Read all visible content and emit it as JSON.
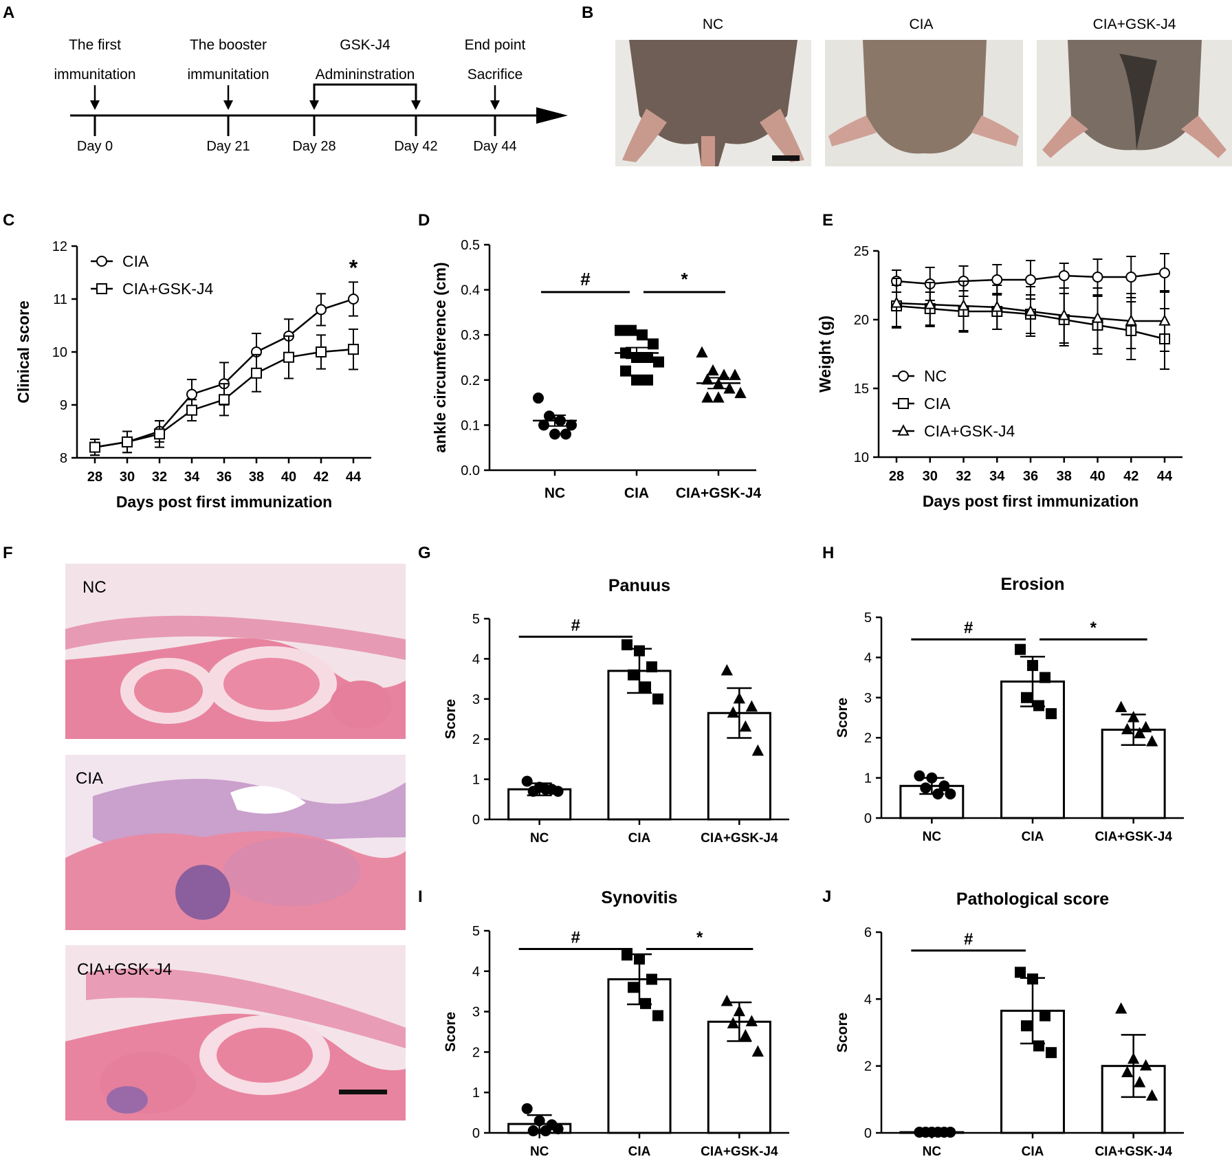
{
  "panel_letters": [
    "A",
    "B",
    "C",
    "D",
    "E",
    "F",
    "G",
    "H",
    "I",
    "J"
  ],
  "timeline": {
    "events": [
      {
        "title1": "The first",
        "title2": "immunitation",
        "day": "Day 0"
      },
      {
        "title1": "The booster",
        "title2": "immunitation",
        "day": "Day 21"
      },
      {
        "title1": "GSK-J4",
        "title2": "Admininstration",
        "day": "Day 28"
      },
      {
        "title1": "",
        "title2": "",
        "day": "Day 42"
      },
      {
        "title1": "End point",
        "title2": "Sacrifice",
        "day": "Day 44"
      }
    ]
  },
  "photos_b": {
    "labels": [
      "NC",
      "CIA",
      "CIA+GSK-J4"
    ]
  },
  "histology_f": {
    "labels": [
      "NC",
      "CIA",
      "CIA+GSK-J4"
    ]
  },
  "chart_data": [
    {
      "panel": "C",
      "type": "line",
      "xlabel": "Days post first immunization",
      "ylabel": "Clinical score",
      "x": [
        28,
        30,
        32,
        34,
        36,
        38,
        40,
        42,
        44
      ],
      "ylim": [
        8,
        12
      ],
      "yticks": [
        8,
        9,
        10,
        11,
        12
      ],
      "series": [
        {
          "name": "CIA",
          "marker": "circle",
          "values": [
            8.2,
            8.3,
            8.5,
            9.2,
            9.4,
            10.0,
            10.3,
            10.8,
            11.0
          ],
          "err": [
            0.15,
            0.2,
            0.2,
            0.28,
            0.4,
            0.35,
            0.32,
            0.3,
            0.32
          ]
        },
        {
          "name": "CIA+GSK-J4",
          "marker": "square",
          "values": [
            8.2,
            8.3,
            8.45,
            8.9,
            9.1,
            9.6,
            9.9,
            10.0,
            10.05
          ],
          "err": [
            0.15,
            0.2,
            0.25,
            0.2,
            0.3,
            0.35,
            0.4,
            0.32,
            0.38
          ]
        }
      ],
      "annotations": [
        {
          "text": "*",
          "x": 44
        }
      ],
      "legend": "top-left"
    },
    {
      "panel": "D",
      "type": "scatter",
      "ylabel": "ankle circumference (cm)",
      "categories": [
        "NC",
        "CIA",
        "CIA+GSK-J4"
      ],
      "ylim": [
        0,
        0.5
      ],
      "yticks": [
        "0.0",
        "0.1",
        "0.2",
        "0.3",
        "0.4",
        "0.5"
      ],
      "groups": [
        {
          "name": "NC",
          "marker": "circle",
          "points": [
            0.16,
            0.12,
            0.11,
            0.1,
            0.1,
            0.08,
            0.08
          ],
          "mean": 0.11,
          "sem": 0.012
        },
        {
          "name": "CIA",
          "marker": "square",
          "points": [
            0.31,
            0.31,
            0.3,
            0.28,
            0.26,
            0.25,
            0.25,
            0.24,
            0.22,
            0.2,
            0.2
          ],
          "mean": 0.26,
          "sem": 0.012
        },
        {
          "name": "CIA+GSK-J4",
          "marker": "triangle",
          "points": [
            0.26,
            0.22,
            0.21,
            0.21,
            0.2,
            0.19,
            0.18,
            0.17,
            0.16,
            0.16
          ],
          "mean": 0.193,
          "sem": 0.012
        }
      ],
      "significance": [
        {
          "text": "#",
          "from": 0,
          "to": 1,
          "y": 0.395
        },
        {
          "text": "*",
          "from": 1,
          "to": 2,
          "y": 0.395
        }
      ]
    },
    {
      "panel": "E",
      "type": "line",
      "xlabel": "Days post first immunization",
      "ylabel": "Weight (g)",
      "x": [
        28,
        30,
        32,
        34,
        36,
        38,
        40,
        42,
        44
      ],
      "ylim": [
        10,
        25
      ],
      "yticks": [
        10,
        15,
        20,
        25
      ],
      "series": [
        {
          "name": "NC",
          "marker": "circle",
          "values": [
            22.8,
            22.6,
            22.8,
            22.9,
            22.9,
            23.2,
            23.1,
            23.1,
            23.4
          ],
          "err": [
            0.8,
            1.2,
            1.1,
            1.1,
            1.4,
            0.9,
            1.3,
            1.5,
            1.4
          ]
        },
        {
          "name": "CIA",
          "marker": "square",
          "values": [
            21.0,
            20.8,
            20.6,
            20.6,
            20.4,
            20.0,
            19.6,
            19.2,
            18.6
          ],
          "err": [
            1.5,
            1.2,
            1.5,
            1.3,
            1.4,
            1.9,
            2.1,
            2.1,
            2.2
          ]
        },
        {
          "name": "CIA+GSK-J4",
          "marker": "triangle",
          "values": [
            21.2,
            21.1,
            21.0,
            20.9,
            20.6,
            20.3,
            20.1,
            19.9,
            19.9
          ],
          "err": [
            1.8,
            1.6,
            1.8,
            1.6,
            1.8,
            2.0,
            2.2,
            2.0,
            2.2
          ]
        }
      ],
      "legend": "bottom-left"
    },
    {
      "panel": "G",
      "type": "bar",
      "title": "Panuus",
      "ylabel": "Score",
      "categories": [
        "NC",
        "CIA",
        "CIA+GSK-J4"
      ],
      "ylim": [
        0,
        5
      ],
      "yticks": [
        0,
        1,
        2,
        3,
        4,
        5
      ],
      "values": [
        0.75,
        3.7,
        2.65
      ],
      "err": [
        0.15,
        0.55,
        0.62
      ],
      "points": [
        [
          0.95,
          0.8,
          0.75,
          0.7,
          0.75,
          0.7
        ],
        [
          4.35,
          4.2,
          3.8,
          3.6,
          3.3,
          3.0
        ],
        [
          3.7,
          3.0,
          2.8,
          2.65,
          2.3,
          1.7
        ]
      ],
      "markers": [
        "circle",
        "square",
        "triangle"
      ],
      "significance": [
        {
          "text": "#",
          "from": 0,
          "to": 1,
          "y": 4.55
        }
      ]
    },
    {
      "panel": "H",
      "type": "bar",
      "title": "Erosion",
      "ylabel": "Score",
      "categories": [
        "NC",
        "CIA",
        "CIA+GSK-J4"
      ],
      "ylim": [
        0,
        5
      ],
      "yticks": [
        0,
        1,
        2,
        3,
        4,
        5
      ],
      "values": [
        0.8,
        3.4,
        2.2
      ],
      "err": [
        0.2,
        0.62,
        0.38
      ],
      "points": [
        [
          1.05,
          1.0,
          0.8,
          0.75,
          0.6,
          0.6
        ],
        [
          4.2,
          3.8,
          3.5,
          3.0,
          2.8,
          2.6
        ],
        [
          2.75,
          2.5,
          2.25,
          2.2,
          2.1,
          1.9
        ]
      ],
      "markers": [
        "circle",
        "square",
        "triangle"
      ],
      "significance": [
        {
          "text": "#",
          "from": 0,
          "to": 1,
          "y": 4.45
        },
        {
          "text": "*",
          "from": 1,
          "to": 2,
          "y": 4.45
        }
      ]
    },
    {
      "panel": "I",
      "type": "bar",
      "title": "Synovitis",
      "ylabel": "Score",
      "categories": [
        "NC",
        "CIA",
        "CIA+GSK-J4"
      ],
      "ylim": [
        0,
        5
      ],
      "yticks": [
        0,
        1,
        2,
        3,
        4,
        5
      ],
      "values": [
        0.22,
        3.8,
        2.75
      ],
      "err": [
        0.22,
        0.62,
        0.48
      ],
      "points": [
        [
          0.6,
          0.3,
          0.2,
          0.05,
          0.05,
          0.1
        ],
        [
          4.4,
          4.3,
          3.8,
          3.6,
          3.2,
          2.9
        ],
        [
          3.25,
          3.0,
          2.75,
          2.7,
          2.4,
          2.0
        ]
      ],
      "markers": [
        "circle",
        "square",
        "triangle"
      ],
      "significance": [
        {
          "text": "#",
          "from": 0,
          "to": 1,
          "y": 4.55
        },
        {
          "text": "*",
          "from": 1,
          "to": 2,
          "y": 4.55
        }
      ]
    },
    {
      "panel": "J",
      "type": "bar",
      "title": "Pathological score",
      "ylabel": "Score",
      "categories": [
        "NC",
        "CIA",
        "CIA+GSK-J4"
      ],
      "ylim": [
        0,
        6
      ],
      "yticks": [
        0,
        2,
        4,
        6
      ],
      "values": [
        0.02,
        3.65,
        2.0
      ],
      "err": [
        0.0,
        0.98,
        0.93
      ],
      "points": [
        [
          0.02,
          0.02,
          0.02,
          0.02,
          0.02,
          0.02
        ],
        [
          4.8,
          4.6,
          3.5,
          3.2,
          2.6,
          2.4
        ],
        [
          3.7,
          2.2,
          2.0,
          1.8,
          1.5,
          1.1
        ]
      ],
      "markers": [
        "circle",
        "square",
        "triangle"
      ],
      "significance": [
        {
          "text": "#",
          "from": 0,
          "to": 1,
          "y": 5.45
        }
      ]
    }
  ]
}
